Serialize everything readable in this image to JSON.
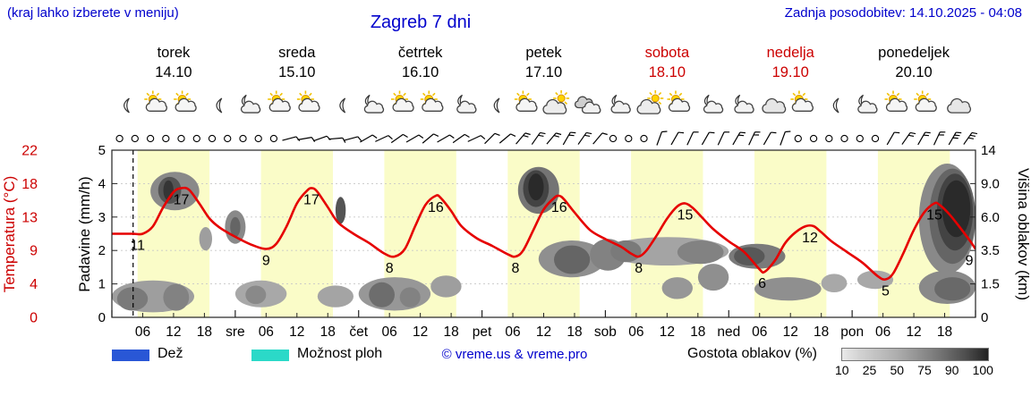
{
  "header": {
    "hint": "(kraj lahko izberete v meniju)",
    "title": "Zagreb 7 dni",
    "last_update": "Zadnja posodobitev: 14.10.2025 - 04:08"
  },
  "colors": {
    "link_blue": "#0000cc",
    "weekend_red": "#cc0000",
    "temp_curve": "#e60000",
    "day_band": "#fafcc8",
    "rain": "#2957d6",
    "showers": "#2bd9c8",
    "grid": "#c8c8c8"
  },
  "axes": {
    "temp_title": "Temperatura (°C)",
    "precip_title": "Padavine (mm/h)",
    "cloud_title": "Višina oblakov (km)",
    "temp_ticks": [
      "22",
      "18",
      "13",
      "9",
      "4",
      "0"
    ],
    "precip_ticks": [
      "5",
      "4",
      "3",
      "2",
      "1",
      "0"
    ],
    "cloud_ticks": [
      "14",
      "9.0",
      "6.0",
      "3.5",
      "1.5",
      "0"
    ],
    "hour_labels": [
      "06",
      "12",
      "18"
    ],
    "day_abbrevs": [
      "sre",
      "čet",
      "pet",
      "sob",
      "ned",
      "pon"
    ]
  },
  "days": [
    {
      "name": "torek",
      "date": "14.10",
      "weekend": false,
      "icons": [
        {
          "t": 2.5,
          "type": "moon"
        },
        {
          "t": 8.5,
          "type": "sun-cloud"
        },
        {
          "t": 14.2,
          "type": "sun-cloud"
        },
        {
          "t": 20.5,
          "type": "moon"
        }
      ]
    },
    {
      "name": "sreda",
      "date": "15.10",
      "weekend": false,
      "icons": [
        {
          "t": 2.5,
          "type": "moon-cloud"
        },
        {
          "t": 8.5,
          "type": "sun-cloud"
        },
        {
          "t": 14.2,
          "type": "sun-cloud"
        },
        {
          "t": 20.5,
          "type": "moon"
        }
      ]
    },
    {
      "name": "četrtek",
      "date": "16.10",
      "weekend": false,
      "icons": [
        {
          "t": 2.5,
          "type": "moon-cloud"
        },
        {
          "t": 8.5,
          "type": "sun-cloud"
        },
        {
          "t": 14.2,
          "type": "sun-cloud"
        },
        {
          "t": 20.5,
          "type": "moon-cloud"
        }
      ]
    },
    {
      "name": "petek",
      "date": "17.10",
      "weekend": false,
      "icons": [
        {
          "t": 2.5,
          "type": "moon"
        },
        {
          "t": 8.5,
          "type": "sun-cloud"
        },
        {
          "t": 14.2,
          "type": "cloud-sun"
        },
        {
          "t": 20.5,
          "type": "clouds"
        }
      ]
    },
    {
      "name": "sobota",
      "date": "18.10",
      "weekend": true,
      "icons": [
        {
          "t": 2.5,
          "type": "moon-cloud"
        },
        {
          "t": 8.5,
          "type": "cloud-sun"
        },
        {
          "t": 14.2,
          "type": "sun-cloud"
        },
        {
          "t": 20.5,
          "type": "moon-cloud"
        }
      ]
    },
    {
      "name": "nedelja",
      "date": "19.10",
      "weekend": true,
      "icons": [
        {
          "t": 2.5,
          "type": "moon-cloud"
        },
        {
          "t": 8.5,
          "type": "cloud"
        },
        {
          "t": 14.2,
          "type": "sun-cloud"
        },
        {
          "t": 20.5,
          "type": "moon"
        }
      ]
    },
    {
      "name": "ponedeljek",
      "date": "20.10",
      "weekend": false,
      "icons": [
        {
          "t": 2.5,
          "type": "moon-cloud"
        },
        {
          "t": 8.5,
          "type": "sun-cloud"
        },
        {
          "t": 14.2,
          "type": "sun-cloud"
        },
        {
          "t": 20.5,
          "type": "cloud"
        }
      ]
    }
  ],
  "legend": {
    "rain_label": "Dež",
    "showers_label": "Možnost ploh",
    "copyright": "© vreme.us & vreme.pro",
    "cloud_density_label": "Gostota oblakov (%)",
    "cloud_scale_labels": [
      "10",
      "25",
      "50",
      "75",
      "90",
      "100"
    ]
  },
  "chart_data": {
    "type": "line",
    "title": "Zagreb 7 dni",
    "x_unit": "hours from torek 00:00",
    "x_range": [
      0,
      168
    ],
    "precip_axis": {
      "label": "Padavine (mm/h)",
      "range": [
        0,
        5
      ],
      "ticks": [
        0,
        1,
        2,
        3,
        4,
        5
      ]
    },
    "temp_axis": {
      "label": "Temperatura (°C)",
      "tick_values_c": [
        0,
        4,
        9,
        13,
        18,
        22
      ]
    },
    "cloud_axis": {
      "label": "Višina oblakov (km)",
      "tick_values_km": [
        0,
        1.5,
        3.5,
        6.0,
        9.0,
        14
      ]
    },
    "current_time_hour": 4.13,
    "daylight_bands_hours": [
      [
        5,
        19
      ],
      [
        29,
        43
      ],
      [
        53,
        67
      ],
      [
        77,
        91
      ],
      [
        101,
        115
      ],
      [
        125,
        139
      ],
      [
        149,
        163
      ]
    ],
    "series": [
      {
        "name": "Temperatura (°C)",
        "color": "#e60000",
        "points_h_c": [
          [
            0,
            11
          ],
          [
            4,
            11
          ],
          [
            6,
            11
          ],
          [
            8,
            12
          ],
          [
            10,
            14.5
          ],
          [
            12,
            16.5
          ],
          [
            13.5,
            17
          ],
          [
            15,
            16.8
          ],
          [
            17,
            15
          ],
          [
            19,
            13
          ],
          [
            21,
            11.8
          ],
          [
            24,
            10.6
          ],
          [
            27,
            9.6
          ],
          [
            30,
            9
          ],
          [
            32,
            9.7
          ],
          [
            34,
            12
          ],
          [
            36,
            15
          ],
          [
            38,
            16.7
          ],
          [
            39,
            17
          ],
          [
            40,
            16.5
          ],
          [
            42,
            14.5
          ],
          [
            44,
            12.5
          ],
          [
            47,
            11
          ],
          [
            50,
            9.8
          ],
          [
            53,
            8.4
          ],
          [
            55,
            8
          ],
          [
            57,
            9
          ],
          [
            59,
            12
          ],
          [
            61,
            14.8
          ],
          [
            63,
            16
          ],
          [
            64,
            15.7
          ],
          [
            66,
            14
          ],
          [
            68,
            12
          ],
          [
            71,
            10.4
          ],
          [
            74,
            9.4
          ],
          [
            77,
            8.3
          ],
          [
            78.5,
            8
          ],
          [
            80,
            8.8
          ],
          [
            82,
            11.5
          ],
          [
            84,
            14.2
          ],
          [
            86,
            15.7
          ],
          [
            87,
            16
          ],
          [
            88,
            15.5
          ],
          [
            90,
            13.8
          ],
          [
            93,
            11.5
          ],
          [
            96,
            10.3
          ],
          [
            99,
            9.3
          ],
          [
            101,
            8.4
          ],
          [
            102.5,
            8
          ],
          [
            104,
            8.8
          ],
          [
            106,
            10.8
          ],
          [
            108,
            13
          ],
          [
            110,
            14.6
          ],
          [
            111.5,
            15
          ],
          [
            113,
            14.4
          ],
          [
            115,
            13
          ],
          [
            117,
            11.6
          ],
          [
            120,
            10
          ],
          [
            123,
            8.6
          ],
          [
            126,
            6.3
          ],
          [
            127,
            6
          ],
          [
            129,
            7.5
          ],
          [
            131,
            9.8
          ],
          [
            133,
            11.2
          ],
          [
            135,
            12
          ],
          [
            136.5,
            12
          ],
          [
            138,
            11.2
          ],
          [
            140,
            10
          ],
          [
            143,
            8.6
          ],
          [
            146,
            7.2
          ],
          [
            149,
            5.4
          ],
          [
            150.5,
            5
          ],
          [
            152,
            5.8
          ],
          [
            154,
            8.5
          ],
          [
            156,
            11.5
          ],
          [
            158,
            13.8
          ],
          [
            160,
            15
          ],
          [
            161,
            14.8
          ],
          [
            163,
            13.5
          ],
          [
            165,
            11.8
          ],
          [
            167,
            10
          ],
          [
            168,
            9
          ]
        ]
      }
    ],
    "temp_labels": [
      [
        5,
        11
      ],
      [
        13.5,
        17
      ],
      [
        30,
        9
      ],
      [
        38.8,
        17
      ],
      [
        54,
        8
      ],
      [
        63,
        16
      ],
      [
        78.5,
        8
      ],
      [
        87,
        16
      ],
      [
        102.5,
        8
      ],
      [
        111.5,
        15
      ],
      [
        126.5,
        6
      ],
      [
        135.8,
        12
      ],
      [
        150.5,
        5
      ],
      [
        160,
        15
      ],
      [
        166.8,
        9
      ]
    ],
    "cloud_blobs_h_v_density": [
      [
        7.5,
        17,
        3.2,
        4.35,
        55
      ],
      [
        9,
        13.5,
        3.4,
        4.2,
        80
      ],
      [
        10,
        12,
        3.5,
        4.1,
        95
      ],
      [
        0,
        16,
        0.15,
        1.1,
        45
      ],
      [
        1,
        7,
        0.2,
        0.9,
        62
      ],
      [
        10,
        15,
        0.2,
        1.0,
        58
      ],
      [
        17,
        19.5,
        2.0,
        2.7,
        45
      ],
      [
        22,
        26,
        2.2,
        3.2,
        55
      ],
      [
        23,
        25,
        2.4,
        3.0,
        72
      ],
      [
        24,
        34,
        0.3,
        1.1,
        40
      ],
      [
        26,
        30,
        0.4,
        0.95,
        55
      ],
      [
        43.5,
        45.5,
        2.8,
        3.6,
        80
      ],
      [
        40,
        47,
        0.3,
        0.95,
        42
      ],
      [
        48,
        62,
        0.2,
        1.2,
        48
      ],
      [
        50,
        55,
        0.3,
        1.05,
        68
      ],
      [
        56,
        60,
        0.3,
        0.9,
        58
      ],
      [
        62,
        68,
        0.6,
        1.25,
        45
      ],
      [
        79,
        87,
        3.1,
        4.5,
        65
      ],
      [
        80,
        85,
        3.3,
        4.4,
        88
      ],
      [
        81,
        84,
        3.5,
        4.3,
        100
      ],
      [
        83,
        96,
        1.2,
        2.3,
        52
      ],
      [
        86,
        93,
        1.3,
        2.15,
        72
      ],
      [
        93,
        100,
        1.4,
        2.35,
        58
      ],
      [
        96,
        120,
        1.55,
        2.4,
        42
      ],
      [
        97,
        103,
        1.65,
        2.3,
        62
      ],
      [
        110,
        119,
        1.6,
        2.3,
        58
      ],
      [
        107,
        113,
        0.55,
        1.2,
        48
      ],
      [
        114,
        120,
        0.8,
        1.6,
        52
      ],
      [
        120,
        131,
        1.45,
        2.2,
        62
      ],
      [
        121,
        127,
        1.55,
        2.1,
        78
      ],
      [
        125,
        138,
        0.5,
        1.2,
        52
      ],
      [
        138,
        143,
        0.75,
        1.3,
        40
      ],
      [
        145,
        152,
        0.85,
        1.4,
        40
      ],
      [
        157,
        168,
        1.3,
        4.6,
        55
      ],
      [
        159,
        168,
        1.6,
        4.45,
        72
      ],
      [
        160.5,
        167.5,
        2.0,
        4.3,
        88
      ],
      [
        161.5,
        167,
        2.4,
        4.1,
        100
      ],
      [
        157,
        168,
        0.4,
        1.4,
        55
      ],
      [
        160,
        167,
        0.5,
        1.2,
        70
      ]
    ],
    "wind_symbols_h_ticks_rot": [
      [
        1.5,
        0,
        0
      ],
      [
        4.5,
        0,
        0
      ],
      [
        7.5,
        0,
        0
      ],
      [
        10.5,
        0,
        0
      ],
      [
        13.5,
        0,
        0
      ],
      [
        16.5,
        0,
        0
      ],
      [
        19.5,
        0,
        0
      ],
      [
        22.5,
        0,
        0
      ],
      [
        25.5,
        0,
        0
      ],
      [
        28.5,
        0,
        0
      ],
      [
        31.5,
        0,
        0
      ],
      [
        34.5,
        1,
        75
      ],
      [
        37.5,
        1,
        80
      ],
      [
        40.5,
        1,
        70
      ],
      [
        43.5,
        1,
        85
      ],
      [
        46.5,
        1,
        75
      ],
      [
        49.5,
        1,
        60
      ],
      [
        52.5,
        1,
        65
      ],
      [
        55.5,
        1,
        55
      ],
      [
        58.5,
        1,
        60
      ],
      [
        61.5,
        1,
        50
      ],
      [
        64.5,
        1,
        60
      ],
      [
        67.5,
        1,
        55
      ],
      [
        70.5,
        1,
        65
      ],
      [
        73.5,
        1,
        45
      ],
      [
        76.5,
        1,
        50
      ],
      [
        79.5,
        2,
        40
      ],
      [
        82.5,
        2,
        35
      ],
      [
        85.5,
        2,
        40
      ],
      [
        88.5,
        2,
        30
      ],
      [
        91.5,
        2,
        35
      ],
      [
        94.5,
        1,
        40
      ],
      [
        97.5,
        0,
        0
      ],
      [
        100.5,
        0,
        0
      ],
      [
        103.5,
        0,
        0
      ],
      [
        106.5,
        1,
        20
      ],
      [
        109.5,
        1,
        30
      ],
      [
        112.5,
        1,
        25
      ],
      [
        115.5,
        1,
        30
      ],
      [
        118.5,
        1,
        25
      ],
      [
        121.5,
        2,
        30
      ],
      [
        124.5,
        2,
        25
      ],
      [
        127.5,
        1,
        30
      ],
      [
        130.5,
        1,
        20
      ],
      [
        133.5,
        0,
        0
      ],
      [
        136.5,
        0,
        0
      ],
      [
        139.5,
        0,
        0
      ],
      [
        142.5,
        0,
        0
      ],
      [
        145.5,
        0,
        0
      ],
      [
        148.5,
        0,
        0
      ],
      [
        151.5,
        1,
        30
      ],
      [
        154.5,
        2,
        35
      ],
      [
        157.5,
        2,
        30
      ],
      [
        160.5,
        2,
        25
      ],
      [
        163.5,
        3,
        30
      ],
      [
        166.5,
        3,
        35
      ]
    ]
  }
}
